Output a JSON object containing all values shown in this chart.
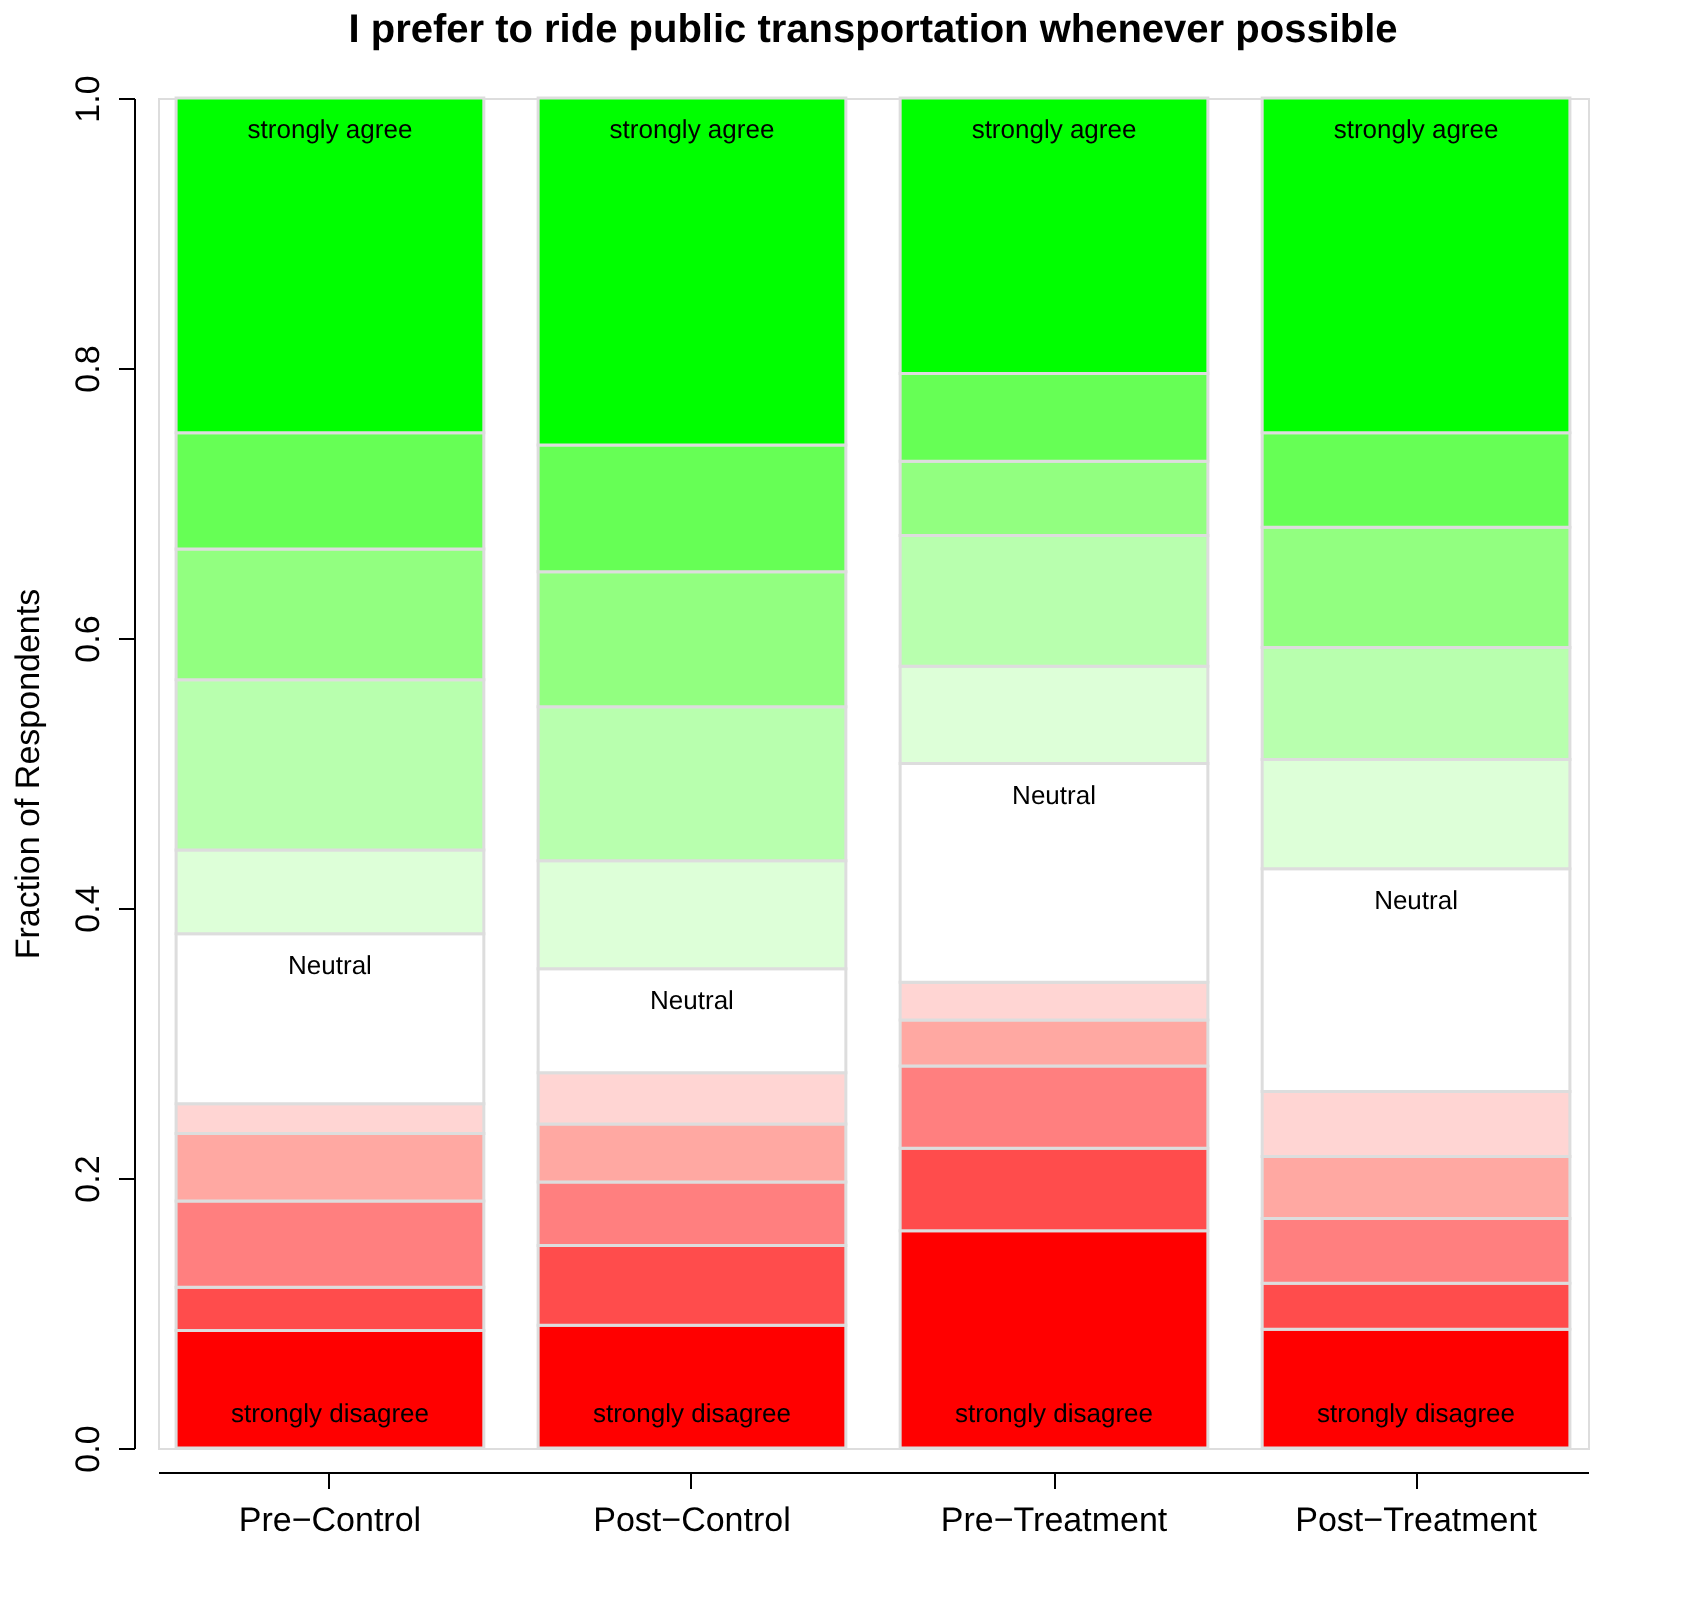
{
  "chart_data": {
    "type": "bar",
    "stacked": true,
    "title": "I prefer to ride public transportation whenever possible",
    "ylabel": "Fraction of Respondents",
    "categories": [
      "Pre−Control",
      "Post−Control",
      "Pre−Treatment",
      "Post−Treatment"
    ],
    "series": [
      {
        "name": "strongly disagree",
        "color": "#ff0000",
        "values": [
          0.087,
          0.091,
          0.161,
          0.088
        ]
      },
      {
        "color": "#ff4c4c",
        "values": [
          0.032,
          0.059,
          0.061,
          0.034
        ]
      },
      {
        "color": "#ff7f7f",
        "values": [
          0.064,
          0.047,
          0.061,
          0.048
        ]
      },
      {
        "color": "#ffa8a2",
        "values": [
          0.05,
          0.043,
          0.034,
          0.046
        ]
      },
      {
        "color": "#ffd5d3",
        "values": [
          0.022,
          0.038,
          0.028,
          0.048
        ]
      },
      {
        "name": "Neutral",
        "color": "#ffffff",
        "values": [
          0.126,
          0.077,
          0.162,
          0.165
        ]
      },
      {
        "color": "#ddffd8",
        "values": [
          0.062,
          0.08,
          0.072,
          0.081
        ]
      },
      {
        "color": "#b8ffae",
        "values": [
          0.126,
          0.114,
          0.097,
          0.083
        ]
      },
      {
        "color": "#92ff80",
        "values": [
          0.097,
          0.1,
          0.055,
          0.089
        ]
      },
      {
        "color": "#66ff55",
        "values": [
          0.086,
          0.094,
          0.065,
          0.07
        ]
      },
      {
        "name": "strongly agree",
        "color": "#00ff00",
        "values": [
          0.248,
          0.257,
          0.204,
          0.248
        ]
      }
    ],
    "ylim": [
      0,
      1
    ],
    "yticks": [
      {
        "value": 0,
        "label": "0.0"
      },
      {
        "value": 0.2,
        "label": "0.2"
      },
      {
        "value": 0.4,
        "label": "0.4"
      },
      {
        "value": 0.6,
        "label": "0.6"
      },
      {
        "value": 0.8,
        "label": "0.8"
      },
      {
        "value": 1,
        "label": "1.0"
      }
    ],
    "grid": false,
    "legend": false
  }
}
